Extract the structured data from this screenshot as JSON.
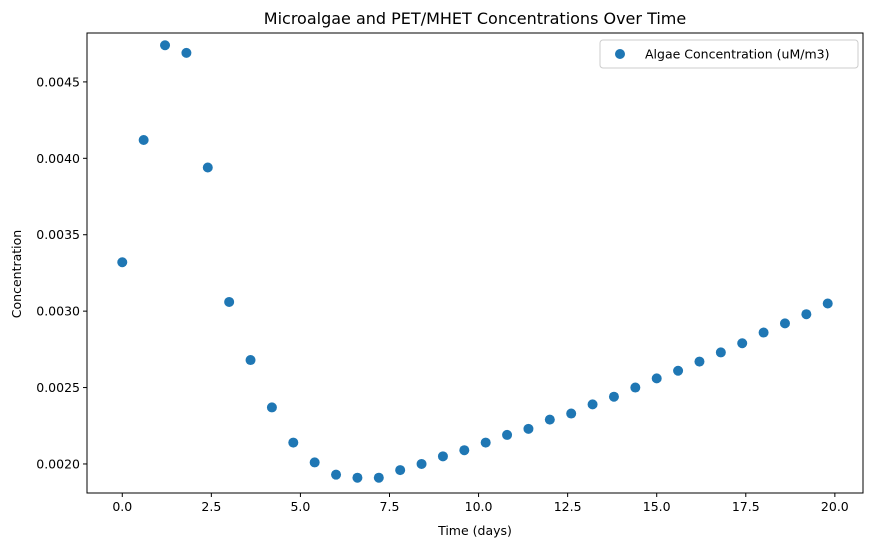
{
  "chart_data": {
    "type": "scatter",
    "title": "Microalgae and PET/MHET Concentrations Over Time",
    "xlabel": "Time (days)",
    "ylabel": "Concentration",
    "xlim": [
      -0.99,
      20.79
    ],
    "ylim": [
      0.00181,
      0.00482
    ],
    "xticks": [
      0.0,
      2.5,
      5.0,
      7.5,
      10.0,
      12.5,
      15.0,
      17.5,
      20.0
    ],
    "xtick_labels": [
      "0.0",
      "2.5",
      "5.0",
      "7.5",
      "10.0",
      "12.5",
      "15.0",
      "17.5",
      "20.0"
    ],
    "yticks": [
      0.002,
      0.0025,
      0.003,
      0.0035,
      0.004,
      0.0045
    ],
    "ytick_labels": [
      "0.0020",
      "0.0025",
      "0.0030",
      "0.0035",
      "0.0040",
      "0.0045"
    ],
    "grid": false,
    "legend_position": "top-right",
    "series": [
      {
        "name": "Algae Concentration (uM/m3)",
        "color": "#1f77b4",
        "x": [
          0.0,
          0.6,
          1.2,
          1.8,
          2.4,
          3.0,
          3.6,
          4.2,
          4.8,
          5.4,
          6.0,
          6.6,
          7.2,
          7.8,
          8.4,
          9.0,
          9.6,
          10.2,
          10.8,
          11.4,
          12.0,
          12.6,
          13.2,
          13.8,
          14.4,
          15.0,
          15.6,
          16.2,
          16.8,
          17.4,
          18.0,
          18.6,
          19.2,
          19.8
        ],
        "y": [
          0.00332,
          0.00412,
          0.00474,
          0.00469,
          0.00394,
          0.00306,
          0.00268,
          0.00237,
          0.00214,
          0.00201,
          0.00193,
          0.00191,
          0.00191,
          0.00196,
          0.002,
          0.00205,
          0.00209,
          0.00214,
          0.00219,
          0.00223,
          0.00229,
          0.00233,
          0.00239,
          0.00244,
          0.0025,
          0.00256,
          0.00261,
          0.00267,
          0.00273,
          0.00279,
          0.00286,
          0.00292,
          0.00298,
          0.00305
        ]
      }
    ]
  }
}
